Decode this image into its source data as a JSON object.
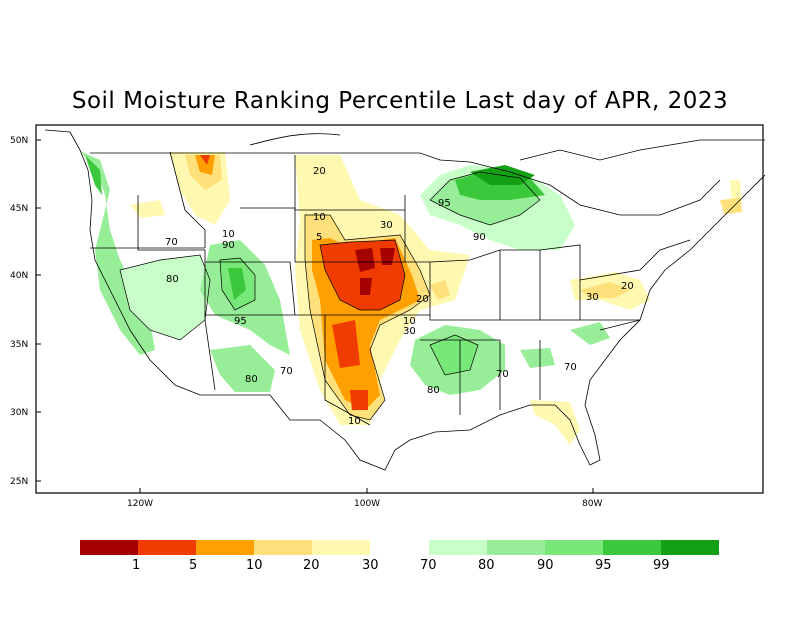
{
  "title": "Soil Moisture Ranking Percentile Last day of APR, 2023",
  "axes": {
    "lat_ticks": [
      "50N",
      "45N",
      "40N",
      "35N",
      "30N",
      "25N"
    ],
    "lon_ticks": [
      "120W",
      "100W",
      "80W"
    ]
  },
  "contour_labels": [
    "20",
    "10",
    "5",
    "30",
    "10",
    "20",
    "10",
    "30",
    "10",
    "95",
    "90",
    "80",
    "90",
    "70",
    "80",
    "95",
    "80",
    "70",
    "80",
    "70",
    "70",
    "30",
    "20"
  ],
  "legend": {
    "dry": [
      {
        "color": "#a50000"
      },
      {
        "color": "#f03c00"
      },
      {
        "color": "#ffa000"
      },
      {
        "color": "#ffe07a"
      },
      {
        "color": "#fff8b0"
      }
    ],
    "dry_labels": [
      "1",
      "5",
      "10",
      "20",
      "30"
    ],
    "wet": [
      {
        "color": "#c8ffc8"
      },
      {
        "color": "#98ee98"
      },
      {
        "color": "#78e878"
      },
      {
        "color": "#3cc83c"
      },
      {
        "color": "#14a014"
      }
    ],
    "wet_labels": [
      "70",
      "80",
      "90",
      "95",
      "99"
    ]
  }
}
